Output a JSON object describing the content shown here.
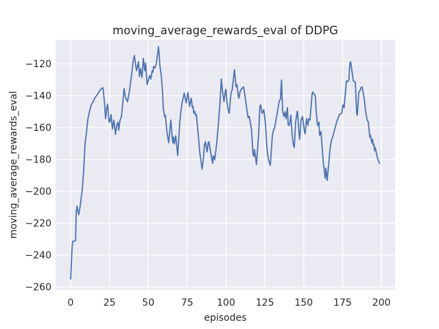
{
  "colors": {
    "figure_background": "#ffffff",
    "plot_background": "#eaeaf2",
    "grid": "#ffffff",
    "line": "#4c72b0",
    "text": "#262626"
  },
  "chart_data": {
    "type": "line",
    "title": "moving_average_rewards_eval of DDPG",
    "xlabel": "episodes",
    "ylabel": "moving_average_rewards_eval",
    "grid": true,
    "legend_position": "none",
    "xlim": [
      -9.7,
      208.8
    ],
    "ylim": [
      -261.9,
      -104.9
    ],
    "x_ticks": [
      0,
      25,
      50,
      75,
      100,
      125,
      150,
      175,
      200
    ],
    "x_tick_labels": [
      "0",
      "25",
      "50",
      "75",
      "100",
      "125",
      "150",
      "175",
      "200"
    ],
    "y_ticks": [
      -260,
      -240,
      -220,
      -200,
      -180,
      -160,
      -140,
      -120
    ],
    "y_tick_labels": [
      "−260",
      "−240",
      "−220",
      "−200",
      "−180",
      "−160",
      "−140",
      "−120"
    ],
    "series": [
      {
        "name": "moving_average_rewards_eval",
        "color": "#4c72b0",
        "points": [
          [
            0,
            -255
          ],
          [
            0.9,
            -236
          ],
          [
            1.3,
            -231.5
          ],
          [
            3.2,
            -231
          ],
          [
            3.6,
            -213
          ],
          [
            4.1,
            -209.3
          ],
          [
            4.7,
            -212.6
          ],
          [
            5.2,
            -214.7
          ],
          [
            6.2,
            -209
          ],
          [
            6.9,
            -203.3
          ],
          [
            7.4,
            -200
          ],
          [
            8.4,
            -187
          ],
          [
            9.3,
            -170
          ],
          [
            10.2,
            -163
          ],
          [
            11,
            -155.3
          ],
          [
            11.9,
            -151
          ],
          [
            13.2,
            -145.8
          ],
          [
            14.1,
            -144.5
          ],
          [
            15.5,
            -141.5
          ],
          [
            17.2,
            -139.3
          ],
          [
            18.5,
            -137.2
          ],
          [
            19.9,
            -135.5
          ],
          [
            20.8,
            -135
          ],
          [
            21.7,
            -143.2
          ],
          [
            22.5,
            -154.4
          ],
          [
            23.4,
            -146.7
          ],
          [
            23.8,
            -145.4
          ],
          [
            24.7,
            -156.1
          ],
          [
            25.2,
            -156.6
          ],
          [
            26,
            -151.8
          ],
          [
            26.9,
            -160.9
          ],
          [
            27.8,
            -155.3
          ],
          [
            28.9,
            -164.3
          ],
          [
            29.6,
            -158.7
          ],
          [
            30.5,
            -156.6
          ],
          [
            30.9,
            -161.7
          ],
          [
            31.8,
            -155.3
          ],
          [
            32.7,
            -153.1
          ],
          [
            34.4,
            -135.5
          ],
          [
            35.3,
            -141
          ],
          [
            36.6,
            -143.8
          ],
          [
            38,
            -136
          ],
          [
            39.2,
            -127
          ],
          [
            40.2,
            -118.5
          ],
          [
            41,
            -114.8
          ],
          [
            42.4,
            -124.3
          ],
          [
            43.7,
            -118.7
          ],
          [
            44.3,
            -128
          ],
          [
            45,
            -123
          ],
          [
            45.9,
            -128.6
          ],
          [
            46.8,
            -116.6
          ],
          [
            47.7,
            -124.3
          ],
          [
            48.3,
            -119.6
          ],
          [
            49.2,
            -133
          ],
          [
            50,
            -130.5
          ],
          [
            50.8,
            -127.3
          ],
          [
            51.6,
            -129.5
          ],
          [
            52.5,
            -124.3
          ],
          [
            53,
            -125.2
          ],
          [
            53.4,
            -121.7
          ],
          [
            54.3,
            -122.6
          ],
          [
            55.2,
            -119.6
          ],
          [
            56.5,
            -109.2
          ],
          [
            57,
            -114.4
          ],
          [
            57.4,
            -120.9
          ],
          [
            58.3,
            -127.3
          ],
          [
            59.2,
            -138.9
          ],
          [
            59.6,
            -147.5
          ],
          [
            60.5,
            -153.1
          ],
          [
            61,
            -152.3
          ],
          [
            61.8,
            -161.7
          ],
          [
            62.7,
            -167.3
          ],
          [
            63.1,
            -169.5
          ],
          [
            64,
            -159.6
          ],
          [
            64.5,
            -155.3
          ],
          [
            65.3,
            -166
          ],
          [
            65.8,
            -169.5
          ],
          [
            66.2,
            -166
          ],
          [
            66.7,
            -170.3
          ],
          [
            67.6,
            -165.2
          ],
          [
            68.9,
            -177.5
          ],
          [
            70.2,
            -157.4
          ],
          [
            70.9,
            -150.2
          ],
          [
            71.7,
            -144.5
          ],
          [
            73.1,
            -138.4
          ],
          [
            74.3,
            -144.5
          ],
          [
            75.5,
            -138
          ],
          [
            76.5,
            -146.7
          ],
          [
            77.6,
            -141.6
          ],
          [
            78.3,
            -147.4
          ],
          [
            78.7,
            -146.7
          ],
          [
            79.3,
            -151
          ],
          [
            79.8,
            -149.8
          ],
          [
            80.5,
            -152.4
          ],
          [
            80.9,
            -151.7
          ],
          [
            81.7,
            -160.3
          ],
          [
            82.4,
            -167.4
          ],
          [
            83.1,
            -175.3
          ],
          [
            84.6,
            -186.1
          ],
          [
            85.3,
            -181.1
          ],
          [
            86.1,
            -171
          ],
          [
            86.7,
            -168.9
          ],
          [
            87.8,
            -175.3
          ],
          [
            88.5,
            -169.6
          ],
          [
            89,
            -168.9
          ],
          [
            90.5,
            -178
          ],
          [
            91.4,
            -182.4
          ],
          [
            91.8,
            -177.6
          ],
          [
            92.7,
            -180.2
          ],
          [
            94,
            -170
          ],
          [
            94.9,
            -159.6
          ],
          [
            96.2,
            -143.2
          ],
          [
            97,
            -129.5
          ],
          [
            97.6,
            -136.6
          ],
          [
            98.7,
            -143.8
          ],
          [
            99.5,
            -137.3
          ],
          [
            99.9,
            -136
          ],
          [
            100.6,
            -144.5
          ],
          [
            101.4,
            -148.8
          ],
          [
            102,
            -151
          ],
          [
            102.9,
            -141.6
          ],
          [
            103.4,
            -137.3
          ],
          [
            103.9,
            -136.6
          ],
          [
            104.6,
            -131
          ],
          [
            105.4,
            -123.7
          ],
          [
            106.1,
            -131
          ],
          [
            106.5,
            -134.5
          ],
          [
            107,
            -133
          ],
          [
            107.9,
            -140.2
          ],
          [
            108.3,
            -141.6
          ],
          [
            109.1,
            -137.3
          ],
          [
            109.8,
            -136
          ],
          [
            110.5,
            -135.2
          ],
          [
            111.3,
            -134.5
          ],
          [
            112,
            -138.8
          ],
          [
            112.7,
            -143.8
          ],
          [
            113.4,
            -148.8
          ],
          [
            114.2,
            -153.8
          ],
          [
            114.9,
            -153
          ],
          [
            115.7,
            -157.3
          ],
          [
            116.4,
            -161.6
          ],
          [
            117.4,
            -176.8
          ],
          [
            117.9,
            -178
          ],
          [
            118.3,
            -173.8
          ],
          [
            119.6,
            -183.2
          ],
          [
            121,
            -163.9
          ],
          [
            121.8,
            -146.7
          ],
          [
            122.3,
            -145.8
          ],
          [
            123.2,
            -151
          ],
          [
            124.3,
            -148.8
          ],
          [
            125.4,
            -158.2
          ],
          [
            126.3,
            -172.5
          ],
          [
            127.2,
            -179.7
          ],
          [
            128.5,
            -183.7
          ],
          [
            129.8,
            -165.2
          ],
          [
            130.7,
            -160.9
          ],
          [
            131.2,
            -160.4
          ],
          [
            132.9,
            -151
          ],
          [
            134.3,
            -143.2
          ],
          [
            135,
            -142.4
          ],
          [
            135.7,
            -130.2
          ],
          [
            136.4,
            -149.7
          ],
          [
            137.3,
            -153.1
          ],
          [
            138,
            -150.1
          ],
          [
            138.6,
            -154.4
          ],
          [
            139.5,
            -147.5
          ],
          [
            140,
            -158.2
          ],
          [
            140.8,
            -158.7
          ],
          [
            141.7,
            -152.3
          ],
          [
            142.6,
            -165.2
          ],
          [
            143.5,
            -171.6
          ],
          [
            143.9,
            -172.5
          ],
          [
            144.8,
            -156.6
          ],
          [
            145.7,
            -150.1
          ],
          [
            146,
            -149.7
          ],
          [
            147,
            -163.9
          ],
          [
            147.4,
            -167.3
          ],
          [
            148.3,
            -155.3
          ],
          [
            149.2,
            -153.1
          ],
          [
            150.5,
            -162.6
          ],
          [
            150.9,
            -163.9
          ],
          [
            151.8,
            -154.4
          ],
          [
            152.7,
            -158.7
          ],
          [
            153.2,
            -154.4
          ],
          [
            154,
            -155.3
          ],
          [
            155.4,
            -138.9
          ],
          [
            155.8,
            -137.7
          ],
          [
            157.5,
            -140.2
          ],
          [
            158,
            -149.7
          ],
          [
            158.9,
            -158.7
          ],
          [
            159.8,
            -156.6
          ],
          [
            160.2,
            -164.8
          ],
          [
            161.1,
            -162.6
          ],
          [
            162.5,
            -181.1
          ],
          [
            163.8,
            -191.8
          ],
          [
            164.2,
            -185.4
          ],
          [
            165.1,
            -193.1
          ],
          [
            166.4,
            -179.7
          ],
          [
            166.9,
            -173.3
          ],
          [
            167.8,
            -168.2
          ],
          [
            168.6,
            -166
          ],
          [
            170,
            -160.9
          ],
          [
            171.3,
            -156.2
          ],
          [
            173,
            -151.8
          ],
          [
            174.4,
            -151
          ],
          [
            175.3,
            -145.8
          ],
          [
            176,
            -147.5
          ],
          [
            177,
            -136
          ],
          [
            177.5,
            -130.7
          ],
          [
            178.4,
            -131.2
          ],
          [
            179.1,
            -130
          ],
          [
            179.7,
            -119.6
          ],
          [
            180.2,
            -118.7
          ],
          [
            181,
            -124.3
          ],
          [
            181.9,
            -130.7
          ],
          [
            183.2,
            -131.6
          ],
          [
            184.1,
            -151
          ],
          [
            184.5,
            -152.3
          ],
          [
            185.4,
            -138
          ],
          [
            186.3,
            -136.7
          ],
          [
            186.8,
            -135
          ],
          [
            187.6,
            -134.6
          ],
          [
            189,
            -142.4
          ],
          [
            189.9,
            -150.1
          ],
          [
            190.8,
            -155.3
          ],
          [
            191.6,
            -156.6
          ],
          [
            192.5,
            -166
          ],
          [
            192.9,
            -164.7
          ],
          [
            193.8,
            -169.5
          ],
          [
            194.3,
            -167.3
          ],
          [
            194.7,
            -171.1
          ],
          [
            195.1,
            -170.3
          ],
          [
            195.6,
            -174.6
          ],
          [
            196,
            -172.5
          ],
          [
            197.4,
            -178.9
          ],
          [
            198.2,
            -181.1
          ],
          [
            198.7,
            -182.4
          ]
        ]
      }
    ]
  }
}
